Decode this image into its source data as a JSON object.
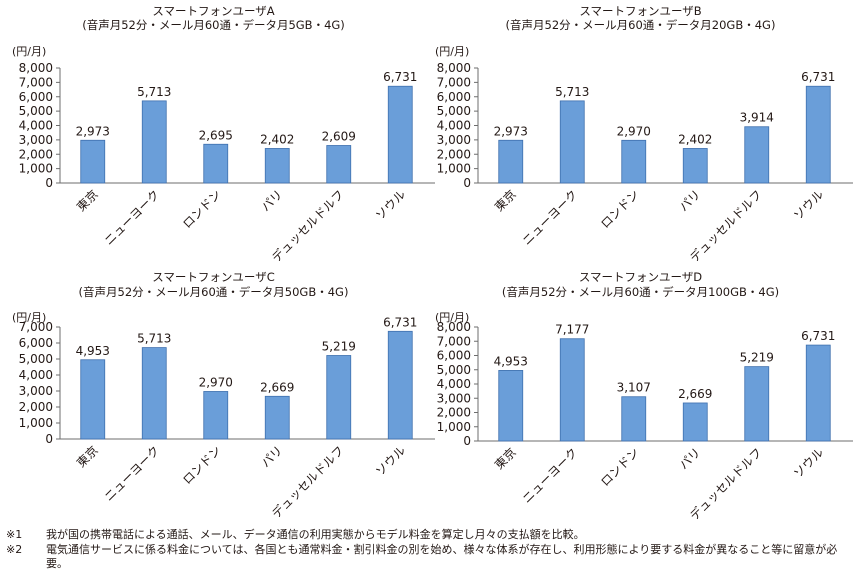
{
  "chart_data": [
    {
      "type": "bar",
      "title": "スマートフォンユーザA",
      "subtitle": "(音声月52分・メール月60通・データ月5GB・4G)",
      "ylabel": "(円/月)",
      "categories": [
        "東京",
        "ニューヨーク",
        "ロンドン",
        "パリ",
        "デュッセルドルフ",
        "ソウル"
      ],
      "values": [
        2973,
        5713,
        2695,
        2402,
        2609,
        6731
      ],
      "value_labels": [
        "2,973",
        "5,713",
        "2,695",
        "2,402",
        "2,609",
        "6,731"
      ],
      "ylim": [
        0,
        8000
      ],
      "yticks": [
        "8,000",
        "7,000",
        "6,000",
        "5,000",
        "4,000",
        "3,000",
        "2,000",
        "1,000",
        "0"
      ],
      "bar_color": "#6a9ed9"
    },
    {
      "type": "bar",
      "title": "スマートフォンユーザB",
      "subtitle": "(音声月52分・メール月60通・データ月20GB・4G)",
      "ylabel": "(円/月)",
      "categories": [
        "東京",
        "ニューヨーク",
        "ロンドン",
        "パリ",
        "デュッセルドルフ",
        "ソウル"
      ],
      "values": [
        2973,
        5713,
        2970,
        2402,
        3914,
        6731
      ],
      "value_labels": [
        "2,973",
        "5,713",
        "2,970",
        "2,402",
        "3,914",
        "6,731"
      ],
      "ylim": [
        0,
        8000
      ],
      "yticks": [
        "8,000",
        "7,000",
        "6,000",
        "5,000",
        "4,000",
        "3,000",
        "2,000",
        "1,000",
        "0"
      ],
      "bar_color": "#6a9ed9"
    },
    {
      "type": "bar",
      "title": "スマートフォンユーザC",
      "subtitle": "(音声月52分・メール月60通・データ月50GB・4G)",
      "ylabel": "(円/月)",
      "categories": [
        "東京",
        "ニューヨーク",
        "ロンドン",
        "パリ",
        "デュッセルドルフ",
        "ソウル"
      ],
      "values": [
        4953,
        5713,
        2970,
        2669,
        5219,
        6731
      ],
      "value_labels": [
        "4,953",
        "5,713",
        "2,970",
        "2,669",
        "5,219",
        "6,731"
      ],
      "ylim": [
        0,
        7000
      ],
      "yticks": [
        "7,000",
        "6,000",
        "5,000",
        "4,000",
        "3,000",
        "2,000",
        "1,000",
        "0"
      ],
      "bar_color": "#6a9ed9"
    },
    {
      "type": "bar",
      "title": "スマートフォンユーザD",
      "subtitle": "(音声月52分・メール月60通・データ月100GB・4G)",
      "ylabel": "(円/月)",
      "categories": [
        "東京",
        "ニューヨーク",
        "ロンドン",
        "パリ",
        "デュッセルドルフ",
        "ソウル"
      ],
      "values": [
        4953,
        7177,
        3107,
        2669,
        5219,
        6731
      ],
      "value_labels": [
        "4,953",
        "7,177",
        "3,107",
        "2,669",
        "5,219",
        "6,731"
      ],
      "ylim": [
        0,
        8000
      ],
      "yticks": [
        "8,000",
        "7,000",
        "6,000",
        "5,000",
        "4,000",
        "3,000",
        "2,000",
        "1,000",
        "0"
      ],
      "bar_color": "#6a9ed9"
    }
  ],
  "notes": [
    {
      "mark": "※1",
      "text": "我が国の携帯電話による通話、メール、データ通信の利用実態からモデル料金を算定し月々の支払額を比較。"
    },
    {
      "mark": "※2",
      "text": "電気通信サービスに係る料金については、各国とも通常料金・割引料金の別を始め、様々な体系が存在し、利用形態により要する料金が異なること等に留意が必要。"
    }
  ],
  "colors": {
    "axis": "#6d6d6d",
    "text": "#231815"
  }
}
